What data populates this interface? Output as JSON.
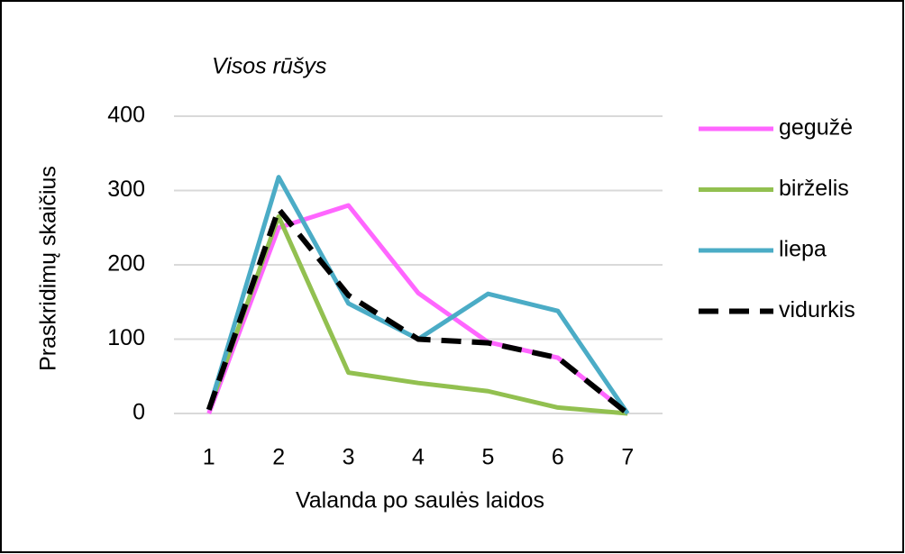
{
  "chart_data": {
    "type": "line",
    "title": "Visos rūšys",
    "x_label": "Valanda po saulės laidos",
    "y_label": "Praskridimų skaičius",
    "categories": [
      "1",
      "2",
      "3",
      "4",
      "5",
      "6",
      "7"
    ],
    "series": [
      {
        "name": "gegužė",
        "color": "#ff66ff",
        "values": [
          0,
          250,
          280,
          162,
          96,
          75,
          0
        ]
      },
      {
        "name": "birželis",
        "color": "#92c050",
        "values": [
          5,
          265,
          55,
          41,
          30,
          8,
          0
        ]
      },
      {
        "name": "liepa",
        "color": "#4bacc6",
        "values": [
          5,
          318,
          148,
          100,
          161,
          138,
          0
        ]
      },
      {
        "name": "vidurkis",
        "color": "#000000",
        "dashed": true,
        "values": [
          5,
          275,
          159,
          100,
          95,
          75,
          0
        ]
      }
    ],
    "ylim": [
      0,
      400
    ],
    "yticks": [
      0,
      100,
      200,
      300,
      400
    ],
    "grid": true,
    "legend": "right"
  }
}
